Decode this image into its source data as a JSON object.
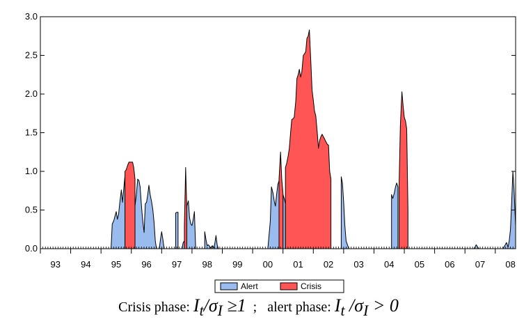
{
  "chart_data": {
    "type": "area",
    "x_tick_labels": [
      "93",
      "94",
      "95",
      "96",
      "97",
      "98",
      "99",
      "00",
      "01",
      "02",
      "03",
      "04",
      "05",
      "06",
      "07",
      "08"
    ],
    "y_tick_labels": [
      "0.0",
      "0.5",
      "1.0",
      "1.5",
      "2.0",
      "2.5",
      "3.0"
    ],
    "ylim": [
      0,
      3.0
    ],
    "xlim": [
      1993.0,
      2008.67
    ],
    "grid": false,
    "legend_position": "bottom-center",
    "colors": {
      "Alert": "#99bbee",
      "Crisis": "#ff5555"
    },
    "series": [
      {
        "name": "Alert",
        "segments": [
          [
            [
              1995.33,
              0
            ],
            [
              1995.37,
              0.32
            ],
            [
              1995.42,
              0.36
            ],
            [
              1995.46,
              0.42
            ],
            [
              1995.5,
              0.48
            ],
            [
              1995.54,
              0.38
            ],
            [
              1995.58,
              0.45
            ],
            [
              1995.62,
              0.6
            ],
            [
              1995.67,
              0.76
            ],
            [
              1995.71,
              0.6
            ],
            [
              1995.75,
              0.78
            ],
            [
              1995.79,
              0.95
            ],
            [
              1995.79,
              0
            ]
          ],
          [
            [
              1996.12,
              0
            ],
            [
              1996.12,
              0.55
            ],
            [
              1996.17,
              0.72
            ],
            [
              1996.21,
              0.9
            ],
            [
              1996.25,
              0.88
            ],
            [
              1996.29,
              0.8
            ],
            [
              1996.33,
              0.58
            ],
            [
              1996.37,
              0.38
            ],
            [
              1996.42,
              0.21
            ],
            [
              1996.46,
              0.58
            ],
            [
              1996.5,
              0.6
            ],
            [
              1996.54,
              0.7
            ],
            [
              1996.58,
              0.82
            ],
            [
              1996.62,
              0.7
            ],
            [
              1996.67,
              0.6
            ],
            [
              1996.71,
              0.5
            ],
            [
              1996.75,
              0.34
            ],
            [
              1996.79,
              0.1
            ],
            [
              1996.83,
              0
            ]
          ],
          [
            [
              1996.92,
              0
            ],
            [
              1996.96,
              0.12
            ],
            [
              1997.0,
              0.22
            ],
            [
              1997.04,
              0.12
            ],
            [
              1997.08,
              0
            ]
          ],
          [
            [
              1997.46,
              0
            ],
            [
              1997.46,
              0.46
            ],
            [
              1997.5,
              0.47
            ],
            [
              1997.54,
              0.47
            ],
            [
              1997.54,
              0
            ]
          ],
          [
            [
              1997.67,
              0
            ],
            [
              1997.71,
              0.08
            ],
            [
              1997.75,
              0.1
            ],
            [
              1997.75,
              0
            ]
          ],
          [
            [
              1997.83,
              0
            ],
            [
              1997.83,
              0.55
            ],
            [
              1997.88,
              0.62
            ],
            [
              1997.92,
              0.4
            ],
            [
              1997.96,
              0.32
            ],
            [
              1998.0,
              0.3
            ],
            [
              1998.04,
              0.38
            ],
            [
              1998.08,
              0.48
            ],
            [
              1998.12,
              0
            ]
          ],
          [
            [
              1998.42,
              0
            ],
            [
              1998.42,
              0.22
            ],
            [
              1998.46,
              0.12
            ],
            [
              1998.5,
              0.04
            ],
            [
              1998.54,
              0.05
            ],
            [
              1998.58,
              0.03
            ],
            [
              1998.62,
              0.01
            ],
            [
              1998.67,
              0.04
            ],
            [
              1998.71,
              0.01
            ],
            [
              1998.75,
              0.06
            ],
            [
              1998.79,
              0.17
            ],
            [
              1998.83,
              0.05
            ],
            [
              1998.87,
              0
            ]
          ],
          [
            [
              2000.5,
              0
            ],
            [
              2000.58,
              0.35
            ],
            [
              2000.62,
              0.8
            ],
            [
              2000.67,
              0.72
            ],
            [
              2000.71,
              0.62
            ],
            [
              2000.75,
              0.55
            ],
            [
              2000.79,
              0.7
            ],
            [
              2000.83,
              0.83
            ],
            [
              2000.87,
              0.88
            ],
            [
              2000.87,
              0
            ]
          ],
          [
            [
              2001.0,
              0
            ],
            [
              2001.0,
              0.7
            ],
            [
              2001.04,
              0.65
            ],
            [
              2001.08,
              0.58
            ],
            [
              2001.08,
              0
            ]
          ],
          [
            [
              2002.92,
              0
            ],
            [
              2002.92,
              0.93
            ],
            [
              2002.96,
              0.85
            ],
            [
              2003.0,
              0.6
            ],
            [
              2003.04,
              0.3
            ],
            [
              2003.08,
              0.1
            ],
            [
              2003.17,
              0
            ]
          ],
          [
            [
              2004.58,
              0
            ],
            [
              2004.58,
              0.7
            ],
            [
              2004.62,
              0.65
            ],
            [
              2004.67,
              0.72
            ],
            [
              2004.71,
              0.8
            ],
            [
              2004.75,
              0.85
            ],
            [
              2004.79,
              0.8
            ],
            [
              2004.79,
              0
            ]
          ],
          [
            [
              2007.29,
              0
            ],
            [
              2007.33,
              0.02
            ],
            [
              2007.37,
              0.05
            ],
            [
              2007.42,
              0.02
            ],
            [
              2007.46,
              0
            ]
          ],
          [
            [
              2008.25,
              0
            ],
            [
              2008.33,
              0.05
            ],
            [
              2008.37,
              0.08
            ],
            [
              2008.42,
              0.02
            ],
            [
              2008.46,
              0.1
            ],
            [
              2008.5,
              0.25
            ],
            [
              2008.54,
              0.6
            ],
            [
              2008.58,
              1.0
            ],
            [
              2008.62,
              0.75
            ],
            [
              2008.67,
              0.3
            ],
            [
              2008.67,
              0
            ]
          ]
        ]
      },
      {
        "name": "Crisis",
        "segments": [
          [
            [
              1995.79,
              0
            ],
            [
              1995.79,
              1.0
            ],
            [
              1995.83,
              1.02
            ],
            [
              1995.88,
              1.08
            ],
            [
              1995.92,
              1.12
            ],
            [
              1995.96,
              1.12
            ],
            [
              1996.0,
              1.12
            ],
            [
              1996.04,
              1.12
            ],
            [
              1996.08,
              1.05
            ],
            [
              1996.12,
              0.9
            ],
            [
              1996.12,
              0
            ]
          ],
          [
            [
              1997.75,
              0
            ],
            [
              1997.75,
              0.3
            ],
            [
              1997.79,
              1.05
            ],
            [
              1997.83,
              0.5
            ],
            [
              1997.83,
              0
            ]
          ],
          [
            [
              2000.87,
              0
            ],
            [
              2000.87,
              0.9
            ],
            [
              2000.92,
              1.25
            ],
            [
              2000.96,
              0.9
            ],
            [
              2001.0,
              0.72
            ],
            [
              2001.0,
              0
            ]
          ],
          [
            [
              2001.08,
              0
            ],
            [
              2001.08,
              1.05
            ],
            [
              2001.12,
              1.1
            ],
            [
              2001.17,
              1.2
            ],
            [
              2001.21,
              1.3
            ],
            [
              2001.25,
              1.5
            ],
            [
              2001.29,
              1.67
            ],
            [
              2001.33,
              1.68
            ],
            [
              2001.37,
              1.7
            ],
            [
              2001.42,
              1.9
            ],
            [
              2001.46,
              2.2
            ],
            [
              2001.5,
              2.25
            ],
            [
              2001.54,
              2.32
            ],
            [
              2001.58,
              2.22
            ],
            [
              2001.62,
              2.28
            ],
            [
              2001.67,
              2.5
            ],
            [
              2001.71,
              2.52
            ],
            [
              2001.75,
              2.55
            ],
            [
              2001.79,
              2.72
            ],
            [
              2001.83,
              2.75
            ],
            [
              2001.87,
              2.83
            ],
            [
              2001.92,
              2.4
            ],
            [
              2001.96,
              2.05
            ],
            [
              2002.0,
              1.92
            ],
            [
              2002.04,
              1.78
            ],
            [
              2002.08,
              1.72
            ],
            [
              2002.12,
              1.55
            ],
            [
              2002.17,
              1.3
            ],
            [
              2002.21,
              1.4
            ],
            [
              2002.25,
              1.45
            ],
            [
              2002.29,
              1.48
            ],
            [
              2002.33,
              1.45
            ],
            [
              2002.37,
              1.42
            ],
            [
              2002.42,
              1.38
            ],
            [
              2002.46,
              1.35
            ],
            [
              2002.5,
              1.34
            ],
            [
              2002.54,
              1.0
            ],
            [
              2002.58,
              0.9
            ],
            [
              2002.58,
              0
            ]
          ],
          [
            [
              2004.83,
              0
            ],
            [
              2004.83,
              0.85
            ],
            [
              2004.87,
              1.6
            ],
            [
              2004.92,
              2.03
            ],
            [
              2004.96,
              1.85
            ],
            [
              2005.0,
              1.7
            ],
            [
              2005.04,
              1.65
            ],
            [
              2005.08,
              1.55
            ],
            [
              2005.12,
              0.5
            ],
            [
              2005.12,
              0
            ]
          ]
        ]
      }
    ]
  },
  "caption": {
    "crisis_label": "Crisis phase:",
    "crisis_formula": "I<sub>t</sub>/σ<sub>I</sub> ≥1",
    "separator": " ;  ",
    "alert_label": "alert phase:",
    "alert_formula": "I<sub>t</sub> /σ<sub>I</sub> > 0"
  }
}
